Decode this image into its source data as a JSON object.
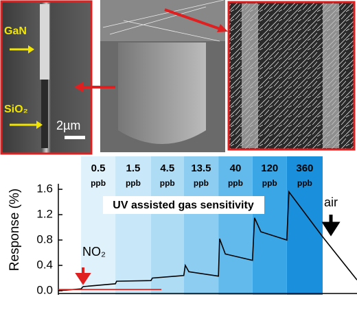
{
  "panel_labels": {
    "gan": "GaN",
    "sio2": "SiO₂",
    "scale_bar": "2µm"
  },
  "chart_data": {
    "type": "line",
    "ylabel": "Response (%)",
    "annotations": {
      "title": "UV assisted gas sensitivity",
      "gas": "NO₂",
      "recovery": "air"
    },
    "xlim": [
      0,
      100
    ],
    "ylim": [
      -0.065,
      1.99
    ],
    "yticks": [
      {
        "value": 0,
        "label": "0.0"
      },
      {
        "value": 0.4,
        "label": "0.4"
      },
      {
        "value": 0.8,
        "label": "0.8"
      },
      {
        "value": 1.2,
        "label": "1.2"
      },
      {
        "value": 1.6,
        "label": "1.6"
      }
    ],
    "bands": [
      {
        "label": "0.5",
        "unit": "ppb",
        "x0": 7.6,
        "x1": 19.1,
        "color": "#dff1fb"
      },
      {
        "label": "1.5",
        "unit": "ppb",
        "x0": 19.1,
        "x1": 31,
        "color": "#c8e7f8"
      },
      {
        "label": "4.5",
        "unit": "ppb",
        "x0": 31,
        "x1": 42,
        "color": "#afdcf5"
      },
      {
        "label": "13.5",
        "unit": "ppb",
        "x0": 42,
        "x1": 53.6,
        "color": "#8ccdf1"
      },
      {
        "label": "40",
        "unit": "ppb",
        "x0": 53.6,
        "x1": 65,
        "color": "#62baec"
      },
      {
        "label": "120",
        "unit": "ppb",
        "x0": 65,
        "x1": 76.5,
        "color": "#3aa6e6"
      },
      {
        "label": "360",
        "unit": "ppb",
        "x0": 76.5,
        "x1": 88.5,
        "color": "#1a90dc"
      }
    ],
    "series": [
      {
        "color": "#000000",
        "x": [
          0,
          7.6,
          8.3,
          19.1,
          19.5,
          31,
          31.5,
          42,
          42.5,
          43.7,
          53.6,
          54,
          55.9,
          65,
          65.7,
          67.8,
          76.5,
          77.2,
          88.5,
          100
        ],
        "values": [
          0,
          0.03,
          0.065,
          0.11,
          0.15,
          0.16,
          0.2,
          0.24,
          0.4,
          0.3,
          0.23,
          0.82,
          0.58,
          0.48,
          1.15,
          0.93,
          0.8,
          1.56,
          0.85,
          0.17
        ]
      },
      {
        "color": "#e0201b",
        "x": [
          0,
          34.5
        ],
        "values": [
          0.02,
          0.02
        ]
      }
    ]
  }
}
